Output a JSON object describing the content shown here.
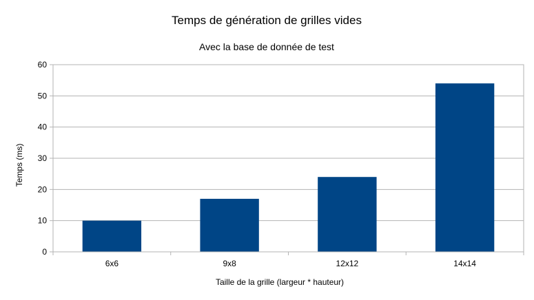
{
  "chart_data": {
    "type": "bar",
    "title": "Temps de génération de grilles vides",
    "subtitle": "Avec la base de donnée de test",
    "xlabel": "Taille de la grille (largeur * hauteur)",
    "ylabel": "Temps (ms)",
    "categories": [
      "6x6",
      "9x8",
      "12x12",
      "14x14"
    ],
    "values": [
      10,
      17,
      24,
      54
    ],
    "ylim": [
      0,
      60
    ],
    "yticks": [
      0,
      10,
      20,
      30,
      40,
      50,
      60
    ],
    "grid": true,
    "legend": "none",
    "bar_color": "#004586"
  }
}
